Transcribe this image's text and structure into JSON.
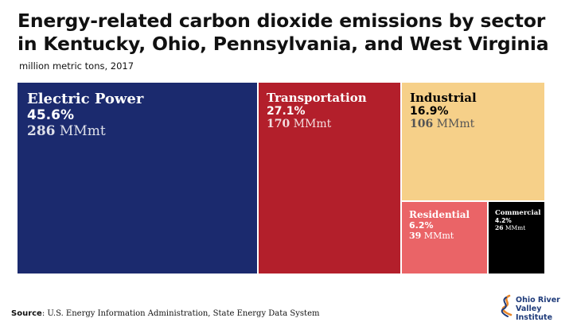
{
  "title_line1": "Energy-related carbon dioxide emissions by sector",
  "title_line2": "in Kentucky, Ohio, Pennsylvania, and West Virginia",
  "subtitle": "million metric tons, 2017",
  "source_label": "Source",
  "source_text": ": U.S. Energy Information Administration, State Energy Data System",
  "logo": {
    "line1": "Ohio River",
    "line2": "Valley Institute"
  },
  "colors": {
    "electric_power": "#1b2a6e",
    "transportation": "#b31f2b",
    "industrial": "#f6d089",
    "residential": "#ea6467",
    "commercial": "#000000"
  },
  "chart_data": {
    "type": "treemap",
    "title": "Energy-related carbon dioxide emissions by sector in Kentucky, Ohio, Pennsylvania, and West Virginia",
    "subtitle": "million metric tons, 2017",
    "unit": "MMmt",
    "items": [
      {
        "name": "Electric Power",
        "percent_label": "45.6%",
        "percent": 45.6,
        "value": 286,
        "value_label": "286",
        "unit_label": "MMmt",
        "color": "#1b2a6e",
        "text_color": "#ffffff"
      },
      {
        "name": "Transportation",
        "percent_label": "27.1%",
        "percent": 27.1,
        "value": 170,
        "value_label": "170",
        "unit_label": "MMmt",
        "color": "#b31f2b",
        "text_color": "#ffffff"
      },
      {
        "name": "Industrial",
        "percent_label": "16.9%",
        "percent": 16.9,
        "value": 106,
        "value_label": "106",
        "unit_label": "MMmt",
        "color": "#f6d089",
        "text_color": "#000000"
      },
      {
        "name": "Residential",
        "percent_label": "6.2%",
        "percent": 6.2,
        "value": 39,
        "value_label": "39",
        "unit_label": "MMmt",
        "color": "#ea6467",
        "text_color": "#ffffff"
      },
      {
        "name": "Commercial",
        "percent_label": "4.2%",
        "percent": 4.2,
        "value": 26,
        "value_label": "26",
        "unit_label": "MMmt",
        "color": "#000000",
        "text_color": "#ffffff"
      }
    ]
  }
}
